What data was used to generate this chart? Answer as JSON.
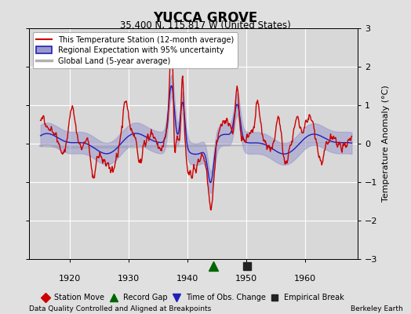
{
  "title": "YUCCA GROVE",
  "subtitle": "35.400 N, 115.817 W (United States)",
  "footer_left": "Data Quality Controlled and Aligned at Breakpoints",
  "footer_right": "Berkeley Earth",
  "xlim": [
    1913,
    1969
  ],
  "ylim": [
    -3,
    3
  ],
  "xticks": [
    1920,
    1930,
    1940,
    1950,
    1960
  ],
  "yticks": [
    -3,
    -2,
    -1,
    0,
    1,
    2,
    3
  ],
  "bg_color": "#e0e0e0",
  "plot_bg_color": "#d8d8d8",
  "grid_color": "#ffffff",
  "station_line_color": "#cc0000",
  "regional_line_color": "#2020bb",
  "regional_fill_color": "#9999cc",
  "global_line_color": "#b0b0b0",
  "ylabel": "Temperature Anomaly (°C)",
  "marker_record_gap_x": 1944.5,
  "marker_empirical_break_x": 1950.2,
  "marker_record_gap_color": "#006600",
  "marker_empirical_break_color": "#222222"
}
